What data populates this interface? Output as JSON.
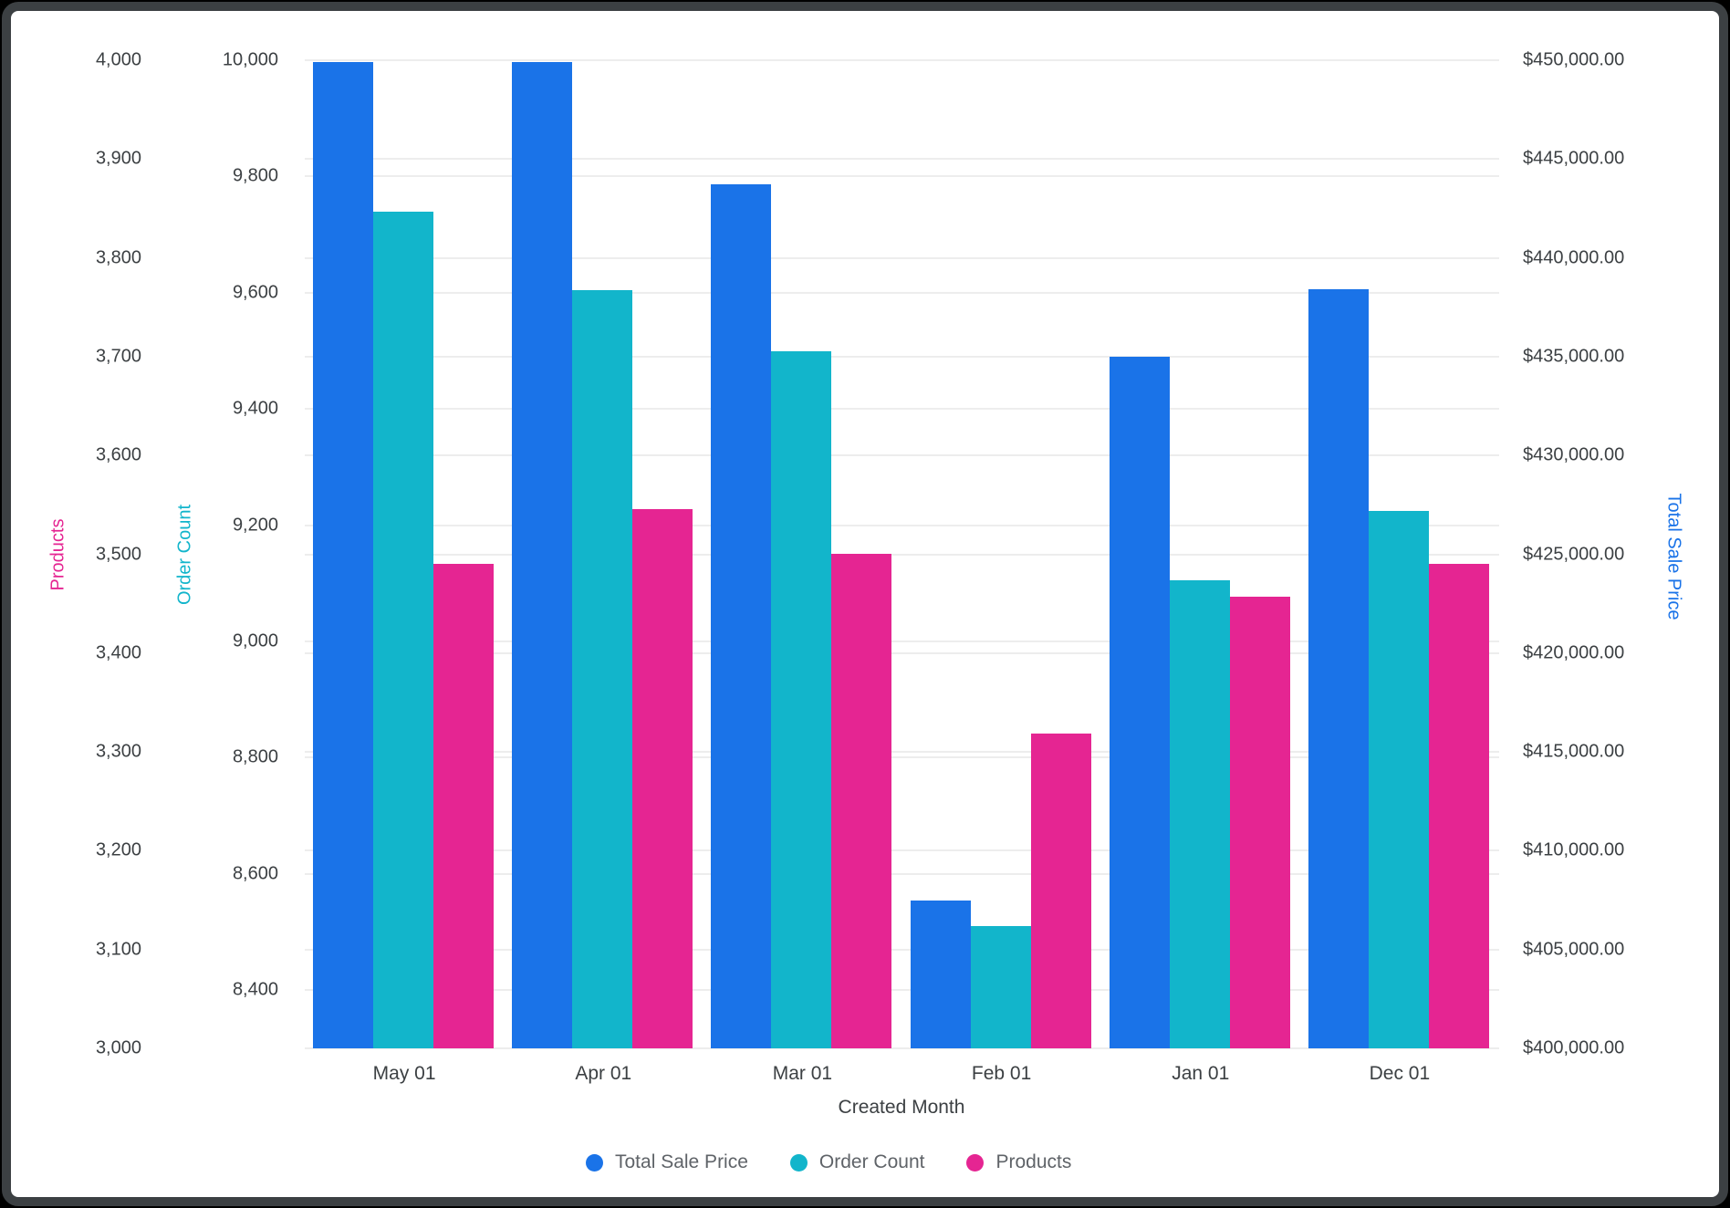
{
  "chart_data": {
    "type": "bar",
    "categories": [
      "May 01",
      "Apr 01",
      "Mar 01",
      "Feb 01",
      "Jan 01",
      "Dec 01"
    ],
    "series": [
      {
        "name": "Total Sale Price",
        "axis": "sale",
        "color": "#1A73E8",
        "values": [
          449900,
          449900,
          443700,
          407500,
          435000,
          438400
        ]
      },
      {
        "name": "Order Count",
        "axis": "order",
        "color": "#12B5CB",
        "values": [
          9740,
          9605,
          9500,
          8510,
          9105,
          9225
        ]
      },
      {
        "name": "Products",
        "axis": "products",
        "color": "#E52592",
        "values": [
          3490,
          3546,
          3500,
          3319,
          3457,
          3490
        ]
      }
    ],
    "xlabel": "Created Month",
    "grid": true,
    "legend_position": "bottom",
    "axes": {
      "products": {
        "title": "Products",
        "color": "#E52592",
        "min": 3000,
        "max": 4000,
        "tick_values": [
          4000,
          3900,
          3800,
          3700,
          3600,
          3500,
          3400,
          3300,
          3200,
          3100,
          3000
        ],
        "tick_labels": [
          "4,000",
          "3,900",
          "3,800",
          "3,700",
          "3,600",
          "3,500",
          "3,400",
          "3,300",
          "3,200",
          "3,100",
          "3,000"
        ]
      },
      "order": {
        "title": "Order Count",
        "color": "#12B5CB",
        "min": 8300,
        "max": 10000,
        "tick_values": [
          10000,
          9800,
          9600,
          9400,
          9200,
          9000,
          8800,
          8600,
          8400
        ],
        "tick_labels": [
          "10,000",
          "9,800",
          "9,600",
          "9,400",
          "9,200",
          "9,000",
          "8,800",
          "8,600",
          "8,400"
        ]
      },
      "sale": {
        "title": "Total Sale Price",
        "color": "#1A73E8",
        "min": 400000,
        "max": 450000,
        "tick_values": [
          450000,
          445000,
          440000,
          435000,
          430000,
          425000,
          420000,
          415000,
          410000,
          405000,
          400000
        ],
        "tick_labels": [
          "$450,000.00",
          "$445,000.00",
          "$440,000.00",
          "$435,000.00",
          "$430,000.00",
          "$425,000.00",
          "$420,000.00",
          "$415,000.00",
          "$410,000.00",
          "$405,000.00",
          "$400,000.00"
        ]
      }
    }
  }
}
